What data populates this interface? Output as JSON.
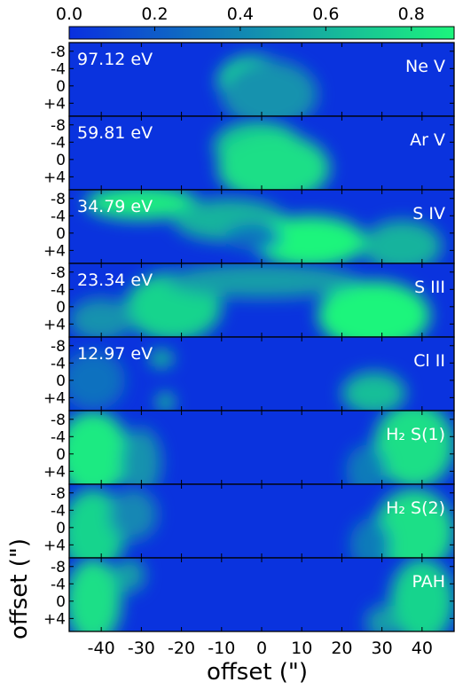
{
  "chart_data": {
    "type": "heatmap",
    "colorbar": {
      "ticks": [
        "0.0",
        "0.2",
        "0.4",
        "0.6",
        "0.8"
      ],
      "tick_values": [
        0.0,
        0.2,
        0.4,
        0.6,
        0.8
      ],
      "range": [
        0.0,
        0.9
      ],
      "colors": {
        "low": "#0a2fe0",
        "high": "#1cf57c"
      }
    },
    "x_axis": {
      "label": "offset (\")",
      "range": [
        -48,
        48
      ],
      "ticks": [
        -40,
        -30,
        -20,
        -10,
        0,
        10,
        20,
        30,
        40
      ],
      "tick_labels": [
        "-40",
        "-30",
        "-20",
        "-10",
        "0",
        "10",
        "20",
        "30",
        "40"
      ]
    },
    "y_axis": {
      "label": "offset (\")",
      "range": [
        -10,
        7
      ],
      "ticks": [
        -8,
        -4,
        0,
        4
      ],
      "tick_labels": [
        "-8",
        "-4",
        "0",
        "+4"
      ]
    },
    "panels": [
      {
        "line": "Ne V",
        "energy": "97.12 eV",
        "blobs": [
          {
            "x": -2,
            "y": -1,
            "rx": 9,
            "ry": 6,
            "v": 0.85
          },
          {
            "x": 2,
            "y": 2,
            "rx": 12,
            "ry": 8,
            "v": 0.45
          }
        ]
      },
      {
        "line": "Ar V",
        "energy": "59.81 eV",
        "blobs": [
          {
            "x": -1,
            "y": -3,
            "rx": 11,
            "ry": 6,
            "v": 0.7
          },
          {
            "x": 3,
            "y": 2,
            "rx": 14,
            "ry": 8,
            "v": 0.8
          }
        ]
      },
      {
        "line": "S IV",
        "energy": "34.79 eV",
        "blobs": [
          {
            "x": -30,
            "y": -7,
            "rx": 14,
            "ry": 4,
            "v": 0.85
          },
          {
            "x": -8,
            "y": -3,
            "rx": 14,
            "ry": 5,
            "v": 0.6
          },
          {
            "x": 12,
            "y": 2,
            "rx": 14,
            "ry": 6,
            "v": 0.9
          },
          {
            "x": -2,
            "y": 1,
            "rx": 7,
            "ry": 3,
            "v": 0.3
          },
          {
            "x": 35,
            "y": 3,
            "rx": 10,
            "ry": 6,
            "v": 0.6
          }
        ]
      },
      {
        "line": "S III",
        "energy": "23.34 eV",
        "blobs": [
          {
            "x": -22,
            "y": 0,
            "rx": 12,
            "ry": 8,
            "v": 0.75
          },
          {
            "x": 28,
            "y": 2,
            "rx": 14,
            "ry": 8,
            "v": 0.9
          },
          {
            "x": 0,
            "y": -6,
            "rx": 24,
            "ry": 4,
            "v": 0.5
          },
          {
            "x": -40,
            "y": 3,
            "rx": 8,
            "ry": 5,
            "v": 0.45
          }
        ]
      },
      {
        "line": "Cl II",
        "energy": "12.97 eV",
        "blobs": [
          {
            "x": -25,
            "y": -5,
            "rx": 3,
            "ry": 2,
            "v": 0.7
          },
          {
            "x": -24,
            "y": 5,
            "rx": 2,
            "ry": 2,
            "v": 0.8
          },
          {
            "x": 28,
            "y": 3,
            "rx": 8,
            "ry": 5,
            "v": 0.65
          },
          {
            "x": -42,
            "y": 0,
            "rx": 8,
            "ry": 7,
            "v": 0.3
          }
        ]
      },
      {
        "line": "H₂ S(1)",
        "energy": "",
        "blobs": [
          {
            "x": -42,
            "y": 0,
            "rx": 9,
            "ry": 10,
            "v": 0.85
          },
          {
            "x": 38,
            "y": -2,
            "rx": 10,
            "ry": 10,
            "v": 0.8
          },
          {
            "x": -30,
            "y": 2,
            "rx": 5,
            "ry": 8,
            "v": 0.45
          },
          {
            "x": 26,
            "y": 4,
            "rx": 5,
            "ry": 6,
            "v": 0.35
          }
        ]
      },
      {
        "line": "H₂ S(2)",
        "energy": "",
        "blobs": [
          {
            "x": -42,
            "y": 1,
            "rx": 8,
            "ry": 10,
            "v": 0.75
          },
          {
            "x": 38,
            "y": 1,
            "rx": 10,
            "ry": 10,
            "v": 0.8
          },
          {
            "x": -32,
            "y": -3,
            "rx": 6,
            "ry": 6,
            "v": 0.4
          },
          {
            "x": 27,
            "y": 4,
            "rx": 5,
            "ry": 6,
            "v": 0.35
          }
        ]
      },
      {
        "line": "PAH",
        "energy": "",
        "blobs": [
          {
            "x": -42,
            "y": 0,
            "rx": 7,
            "ry": 10,
            "v": 0.8
          },
          {
            "x": 40,
            "y": 0,
            "rx": 8,
            "ry": 10,
            "v": 0.75
          },
          {
            "x": -33,
            "y": -6,
            "rx": 4,
            "ry": 4,
            "v": 0.5
          },
          {
            "x": 30,
            "y": 5,
            "rx": 4,
            "ry": 4,
            "v": 0.5
          }
        ]
      }
    ]
  }
}
